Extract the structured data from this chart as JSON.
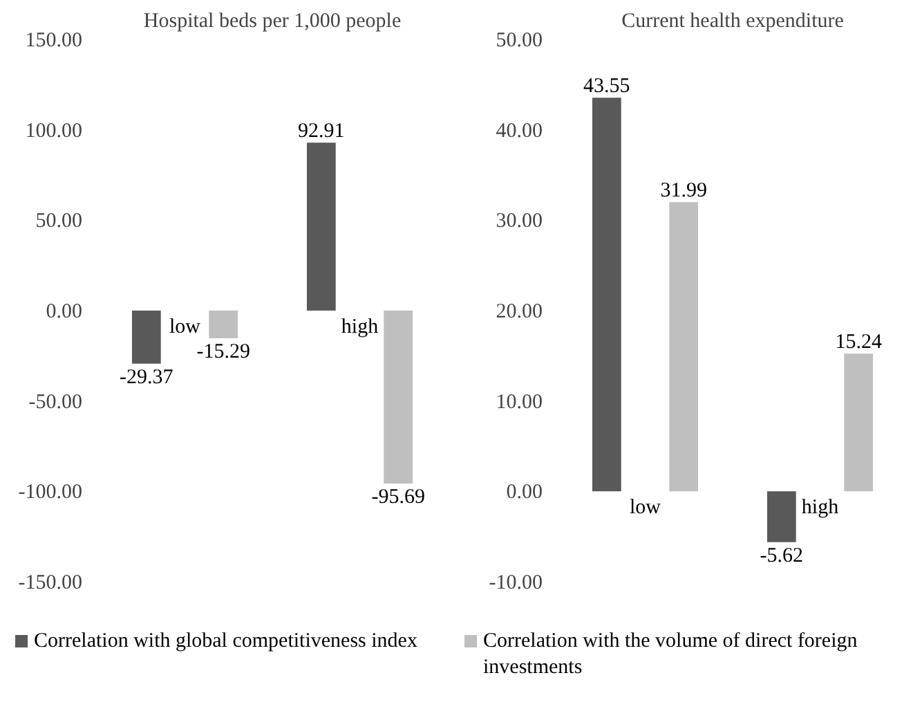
{
  "chart_data": [
    {
      "type": "bar",
      "title": "Hospital beds per 1,000 people",
      "categories": [
        "low",
        "high"
      ],
      "series": [
        {
          "name": "Correlation with global competitiveness index",
          "color": "#595959",
          "values": [
            -29.37,
            92.91
          ]
        },
        {
          "name": "Correlation with the volume of direct foreign investments",
          "color": "#bfbfbf",
          "values": [
            -15.29,
            -95.69
          ]
        }
      ],
      "ylim": [
        -150,
        150
      ],
      "yticks": [
        {
          "value": -150,
          "label": "-150.00"
        },
        {
          "value": -100,
          "label": "-100.00"
        },
        {
          "value": -50,
          "label": "-50.00"
        },
        {
          "value": 0,
          "label": "0.00"
        },
        {
          "value": 50,
          "label": "50.00"
        },
        {
          "value": 100,
          "label": "100.00"
        },
        {
          "value": 150,
          "label": "150.00"
        }
      ],
      "data_labels": true,
      "grid": false,
      "legend": "bottom"
    },
    {
      "type": "bar",
      "title": "Current health expenditure",
      "categories": [
        "low",
        "high"
      ],
      "series": [
        {
          "color": "#595959",
          "values": [
            43.55,
            -5.62
          ]
        },
        {
          "color": "#bfbfbf",
          "values": [
            31.99,
            15.24
          ]
        }
      ],
      "ylim": [
        -10,
        50
      ],
      "yticks": [
        {
          "value": -10,
          "label": "-10.00"
        },
        {
          "value": 0,
          "label": "0.00"
        },
        {
          "value": 10,
          "label": "10.00"
        },
        {
          "value": 20,
          "label": "20.00"
        },
        {
          "value": 30,
          "label": "30.00"
        },
        {
          "value": 40,
          "label": "40.00"
        },
        {
          "value": 50,
          "label": "50.00"
        }
      ],
      "data_labels": true,
      "grid": false,
      "legend": false
    }
  ]
}
